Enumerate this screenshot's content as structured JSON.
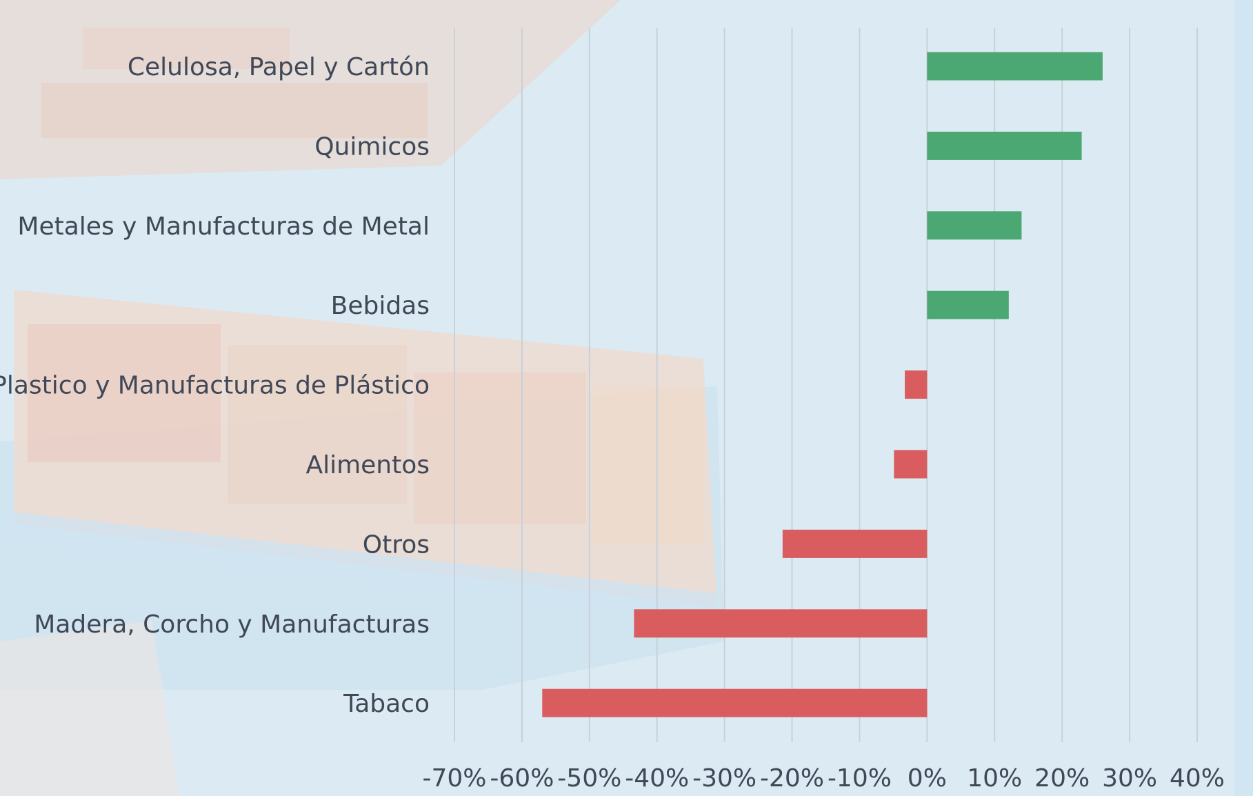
{
  "chart_data": {
    "type": "bar",
    "orientation": "horizontal",
    "title": "",
    "xlabel": "",
    "ylabel": "",
    "categories": [
      "Celulosa, Papel y Cartón",
      "Quimicos",
      "Metales y Manufacturas de Metal",
      "Bebidas",
      "Plastico y Manufacturas de Plástico",
      "Alimentos",
      "Otros",
      "Madera, Corcho y Manufacturas",
      "Tabaco"
    ],
    "values": [
      26,
      22.9,
      14,
      12.1,
      -3.3,
      -4.9,
      -21.4,
      -43.4,
      -57
    ],
    "xlim": [
      -70,
      40
    ],
    "ticks": [
      -70,
      -60,
      -50,
      -40,
      -30,
      -20,
      -10,
      0,
      10,
      20,
      30,
      40
    ],
    "tick_labels": [
      "-70%",
      "-60%",
      "-50%",
      "-40%",
      "-30%",
      "-20%",
      "-10%",
      "0%",
      "10%",
      "20%",
      "30%",
      "40%"
    ],
    "grid": true,
    "legend": "none",
    "colors": {
      "positive": "#4ba872",
      "negative": "#d95c5f",
      "gridline": "#c9d0d8",
      "text": "#404858"
    }
  }
}
